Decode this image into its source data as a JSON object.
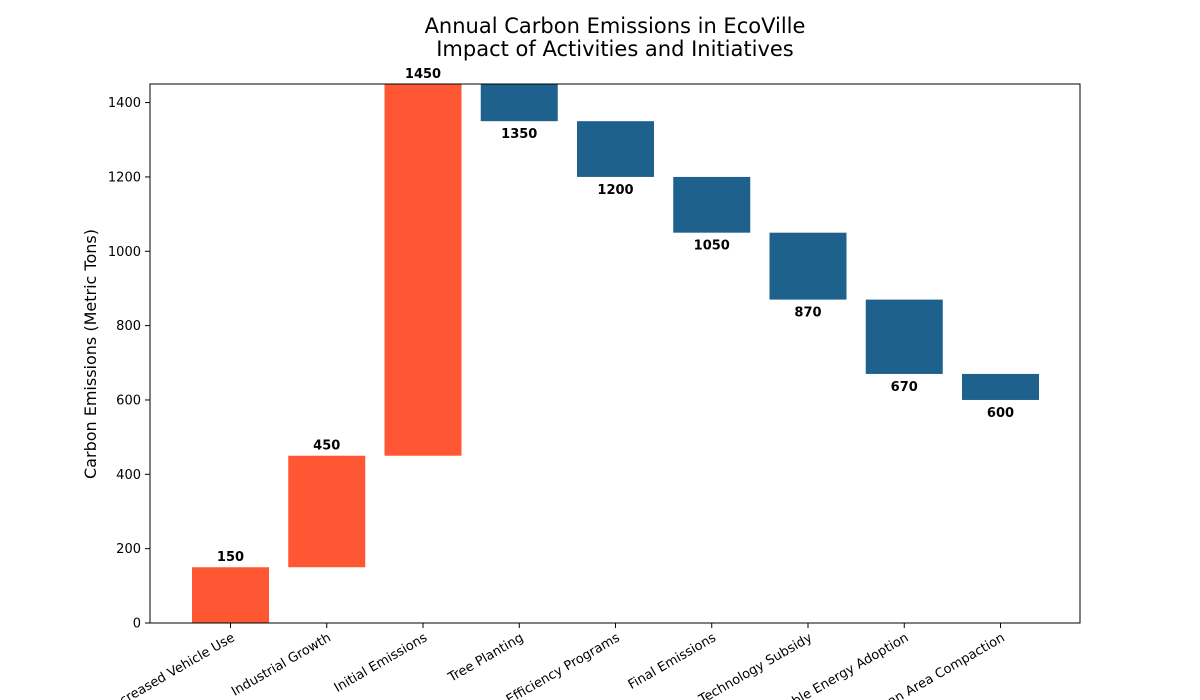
{
  "chart_data": {
    "type": "waterfall",
    "title": "Annual Carbon Emissions in EcoVille",
    "subtitle": "Impact of Activities and Initiatives",
    "xlabel": "",
    "ylabel": "Carbon Emissions (Metric Tons)",
    "ylim": [
      0,
      1450
    ],
    "yticks": [
      0,
      200,
      400,
      600,
      800,
      1000,
      1200,
      1400
    ],
    "grid": false,
    "legend": "none",
    "categories": [
      "Increased Vehicle Use",
      "Industrial Growth",
      "Initial Emissions",
      "Tree Planting",
      "Energy Efficiency Programs",
      "Final Emissions",
      "Green Technology Subsidy",
      "Renewable Energy Adoption",
      "Urban Area Compaction"
    ],
    "bars": [
      {
        "category": "Increased Vehicle Use",
        "start": 0,
        "end": 150,
        "label": "150",
        "label_position": "above"
      },
      {
        "category": "Industrial Growth",
        "start": 150,
        "end": 450,
        "label": "450",
        "label_position": "above"
      },
      {
        "category": "Initial Emissions",
        "start": 450,
        "end": 1450,
        "label": "1450",
        "label_position": "above"
      },
      {
        "category": "Tree Planting",
        "start": 1450,
        "end": 1350,
        "label": "1350",
        "label_position": "below"
      },
      {
        "category": "Energy Efficiency Programs",
        "start": 1350,
        "end": 1200,
        "label": "1200",
        "label_position": "below"
      },
      {
        "category": "Final Emissions",
        "start": 1200,
        "end": 1050,
        "label": "1050",
        "label_position": "below"
      },
      {
        "category": "Green Technology Subsidy",
        "start": 1050,
        "end": 870,
        "label": "870",
        "label_position": "below"
      },
      {
        "category": "Renewable Energy Adoption",
        "start": 870,
        "end": 670,
        "label": "670",
        "label_position": "below"
      },
      {
        "category": "Urban Area Compaction",
        "start": 670,
        "end": 600,
        "label": "600",
        "label_position": "below"
      }
    ],
    "colors": {
      "increase": "#ff5733",
      "decrease": "#1f618d"
    }
  }
}
